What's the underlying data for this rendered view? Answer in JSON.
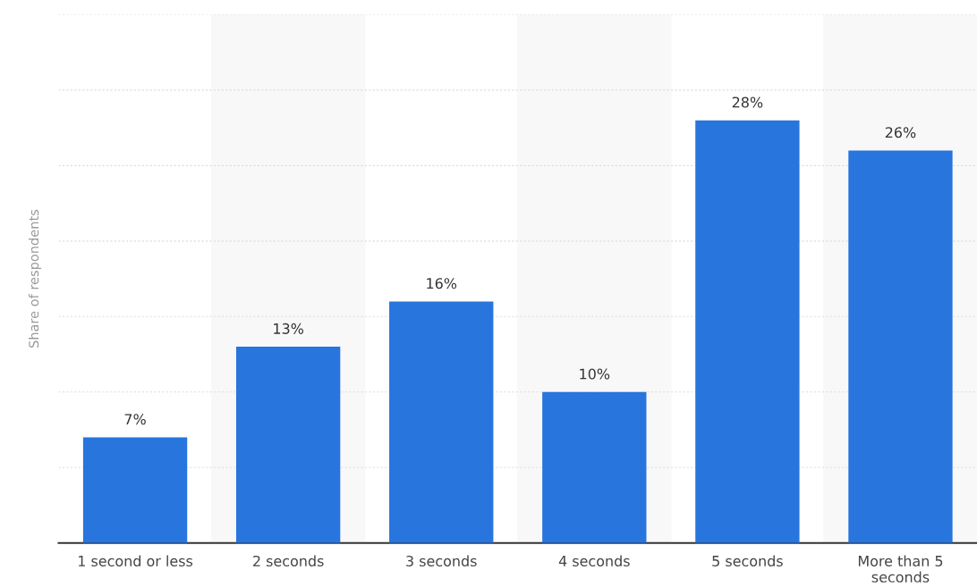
{
  "chart_data": {
    "type": "bar",
    "ylabel": "Share of respondents",
    "categories": [
      "1 second or less",
      "2 seconds",
      "3 seconds",
      "4 seconds",
      "5 seconds",
      "More than 5 seconds"
    ],
    "values": [
      7,
      13,
      16,
      10,
      28,
      26
    ],
    "value_labels": [
      "7%",
      "13%",
      "16%",
      "10%",
      "28%",
      "26%"
    ],
    "color": "#2775dd",
    "ylim": [
      0,
      35
    ],
    "yticks": [
      {
        "value": 0,
        "label": null
      },
      {
        "value": 5,
        "label": null
      },
      {
        "value": 10,
        "label": null
      },
      {
        "value": 15,
        "label": null
      },
      {
        "value": 20,
        "label": null
      },
      {
        "value": 25,
        "label": null
      },
      {
        "value": 30,
        "label": null
      },
      {
        "value": 35,
        "label": null
      }
    ],
    "grid": "y",
    "tick_labels": "x"
  }
}
